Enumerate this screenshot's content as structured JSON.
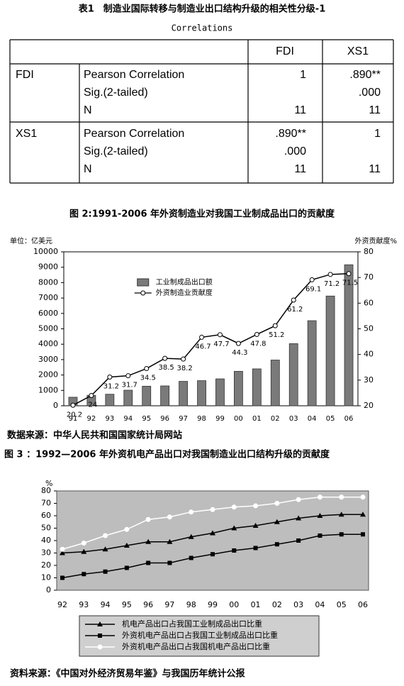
{
  "table": {
    "title": "表1　制造业国际转移与制造业出口结构升级的相关性分级-1",
    "caption": "Correlations",
    "header": [
      "FDI",
      "XS1"
    ],
    "groups": [
      {
        "name": "FDI",
        "rows": [
          [
            "Pearson Correlation",
            "1",
            ".890**"
          ],
          [
            "Sig.(2-tailed)",
            null,
            ".000"
          ],
          [
            "N",
            "11",
            "11"
          ]
        ]
      },
      {
        "name": "XS1",
        "rows": [
          [
            "Pearson Correlation",
            ".890**",
            "1"
          ],
          [
            "Sig.(2-tailed)",
            ".000",
            null
          ],
          [
            "N",
            "11",
            "11"
          ]
        ]
      }
    ]
  },
  "chart_data": [
    {
      "type": "combo",
      "title": "图 2:1991-2006 年外资制造业对我国工业制成品出口的贡献度",
      "y_label": "单位：亿美元",
      "y2_label": "外资贡献度%",
      "categories": [
        "91",
        "92",
        "93",
        "94",
        "95",
        "96",
        "97",
        "98",
        "99",
        "00",
        "01",
        "02",
        "03",
        "04",
        "05",
        "06"
      ],
      "series": [
        {
          "name": "工业制成品出口额",
          "kind": "bar",
          "color": "#7a7a7a",
          "values": [
            556,
            680,
            750,
            1013,
            1273,
            1291,
            1588,
            1632,
            1749,
            2238,
            2398,
            2971,
            4035,
            5528,
            7130,
            9161
          ]
        },
        {
          "name": "外资制造业贡献度",
          "kind": "line",
          "axis": "y2",
          "color": "#000000",
          "marker": "circle",
          "data_labels": true,
          "values": [
            20.2,
            24,
            31.2,
            31.7,
            34.5,
            38.5,
            38.2,
            46.7,
            47.7,
            44.3,
            47.8,
            51.2,
            61.2,
            69.1,
            71.2,
            71.5
          ]
        }
      ],
      "ylim": [
        0,
        10000
      ],
      "yticks": [
        0,
        1000,
        2000,
        3000,
        4000,
        5000,
        6000,
        7000,
        8000,
        9000,
        10000
      ],
      "y2lim": [
        20,
        80
      ],
      "y2ticks": [
        20,
        30,
        40,
        50,
        60,
        70,
        80
      ],
      "legend": "upper-center",
      "source": "数据来源：中华人民共和国国家统计局网站"
    },
    {
      "type": "line",
      "title": "图 3 ：1992—2006 年外资机电产品出口对我国制造业出口结构升级的贡献度",
      "y_label": "%",
      "categories": [
        "92",
        "93",
        "94",
        "95",
        "96",
        "97",
        "98",
        "99",
        "00",
        "01",
        "02",
        "03",
        "04",
        "05",
        "06"
      ],
      "series": [
        {
          "name": "机电产品出口占我国工业制成品出口比重",
          "color": "#000000",
          "marker": "triangle",
          "values": [
            30,
            31,
            33,
            36,
            39,
            39,
            43,
            46,
            50,
            52,
            55,
            58,
            60,
            61,
            61
          ]
        },
        {
          "name": "外资机电产品出口占我国工业制成品出口比重",
          "color": "#000000",
          "marker": "square",
          "values": [
            10,
            13,
            15,
            18,
            22,
            22,
            26,
            29,
            32,
            34,
            37,
            40,
            44,
            45,
            45
          ]
        },
        {
          "name": "外资机电产品出口占我国机电产品出口比重",
          "color": "#ffffff",
          "marker": "circle",
          "values": [
            33,
            38,
            44,
            49,
            57,
            59,
            63,
            65,
            67,
            68,
            70,
            73,
            75,
            75,
            75
          ]
        }
      ],
      "ylim": [
        0,
        80
      ],
      "yticks": [
        0,
        10,
        20,
        30,
        40,
        50,
        60,
        70,
        80
      ],
      "background": "#bdbdbd",
      "legend": "bottom",
      "source": "资料来源：《中国对外经济贸易年鉴》与我国历年统计公报"
    }
  ]
}
